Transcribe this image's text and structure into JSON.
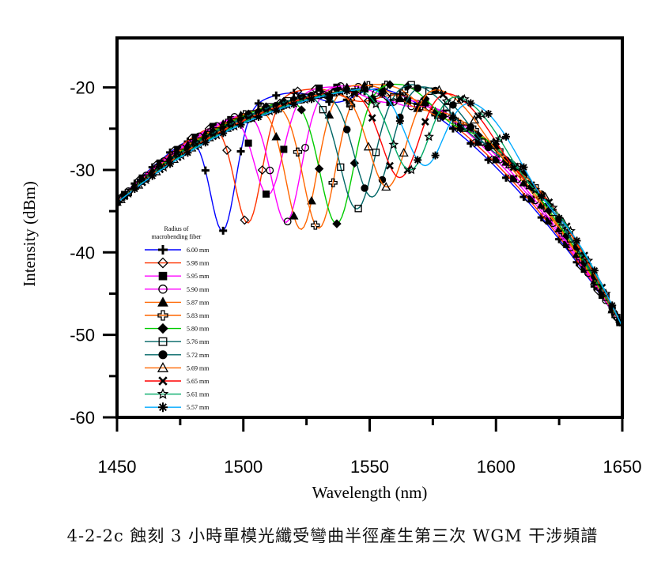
{
  "chart_data": {
    "type": "line",
    "title": "",
    "xlabel": "Wavelength (nm)",
    "ylabel": "Intensity (dBm)",
    "xlim": [
      1450,
      1650
    ],
    "ylim": [
      -60,
      -14
    ],
    "xticks": [
      1450,
      1500,
      1550,
      1600,
      1650
    ],
    "xtick_labels": [
      "1450",
      "1500",
      "1550",
      "1600",
      "1650"
    ],
    "yticks": [
      -60,
      -50,
      -40,
      -30,
      -20
    ],
    "ytick_labels": [
      "-60",
      "-50",
      "-40",
      "-30",
      "-20"
    ],
    "grid": false,
    "legend": {
      "title_line1": "Radius of",
      "title_line2": "macrobending fiber",
      "placement": "lower-left"
    },
    "series": [
      {
        "name": "6.00  mm",
        "color": "#0000ff",
        "marker": "plus-bold",
        "dip": 1492,
        "dip_depth": 37.0,
        "peak": 1547
      },
      {
        "name": "5.98  mm",
        "color": "#ff3300",
        "marker": "diamond-open",
        "dip": 1502,
        "dip_depth": 37.5,
        "peak": 1550
      },
      {
        "name": "5.95  mm",
        "color": "#ff00ff",
        "marker": "square-filled",
        "dip": 1510,
        "dip_depth": 35.0,
        "peak": 1553
      },
      {
        "name": "5.90  mm",
        "color": "#ff00ff",
        "marker": "circle-open",
        "dip": 1517,
        "dip_depth": 39.0,
        "peak": 1556
      },
      {
        "name": "5.87  mm",
        "color": "#ff6600",
        "marker": "triangle-filled",
        "dip": 1523,
        "dip_depth": 40.3,
        "peak": 1559
      },
      {
        "name": "5.83  mm",
        "color": "#ff6600",
        "marker": "plus-open",
        "dip": 1530,
        "dip_depth": 40.7,
        "peak": 1561
      },
      {
        "name": "5.80  mm",
        "color": "#00cc00",
        "marker": "diamond-filled",
        "dip": 1537,
        "dip_depth": 40.6,
        "peak": 1563
      },
      {
        "name": "5.76  mm",
        "color": "#006666",
        "marker": "square-open",
        "dip": 1545,
        "dip_depth": 39.2,
        "peak": 1566
      },
      {
        "name": "5.72  mm",
        "color": "#006666",
        "marker": "circle-filled",
        "dip": 1551,
        "dip_depth": 38.0,
        "peak": 1568
      },
      {
        "name": "5.69  mm",
        "color": "#ff6600",
        "marker": "triangle-open",
        "dip": 1557,
        "dip_depth": 37.0,
        "peak": 1571
      },
      {
        "name": "5.65  mm",
        "color": "#ff0000",
        "marker": "x-bold",
        "dip": 1562,
        "dip_depth": 36.0,
        "peak": 1573
      },
      {
        "name": "5.61  mm",
        "color": "#00aa66",
        "marker": "star-open",
        "dip": 1566,
        "dip_depth": 35.2,
        "peak": 1575
      },
      {
        "name": "5.57  mm",
        "color": "#00aaff",
        "marker": "asterisk",
        "dip": 1572,
        "dip_depth": 34.8,
        "peak": 1578
      }
    ]
  },
  "caption": "4-2-2c 蝕刻 3 小時單模光纖受彎曲半徑產生第三次 WGM 干涉頻譜"
}
